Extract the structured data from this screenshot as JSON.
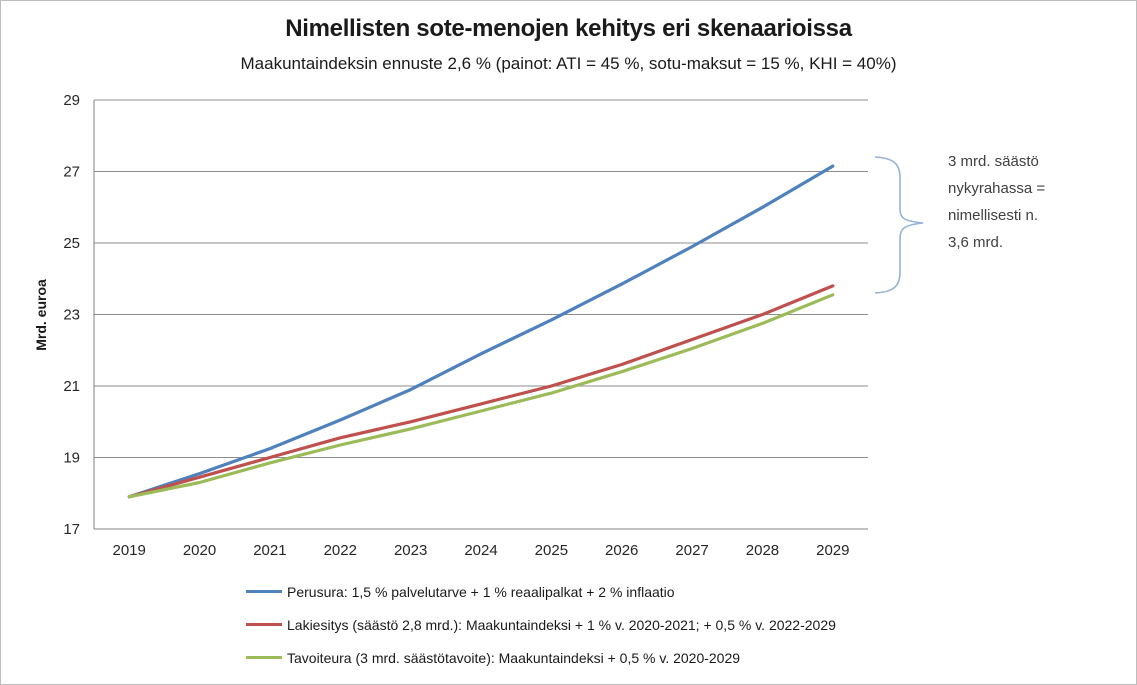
{
  "chart_data": {
    "type": "line",
    "title": "Nimellisten sote-menojen kehitys eri skenaarioissa",
    "subtitle": "Maakuntaindeksin ennuste 2,6 % (painot: ATI = 45 %, sotu-maksut = 15 %, KHI = 40%)",
    "ylabel": "Mrd. euroa",
    "xlabel": "",
    "x": [
      "2019",
      "2020",
      "2021",
      "2022",
      "2023",
      "2024",
      "2025",
      "2026",
      "2027",
      "2028",
      "2029"
    ],
    "yticks": [
      17,
      19,
      21,
      23,
      25,
      27,
      29
    ],
    "ylim": [
      17,
      29
    ],
    "grid": true,
    "legend_position": "bottom-left",
    "series": [
      {
        "name": "Perusura: 1,5 % palvelutarve + 1 % reaalipalkat + 2 % inflaatio",
        "color": "#4F81BD",
        "values": [
          17.9,
          18.55,
          19.25,
          20.05,
          20.9,
          21.9,
          22.85,
          23.85,
          24.9,
          26.0,
          27.15
        ]
      },
      {
        "name": "Lakiesitys (säästö 2,8 mrd.): Maakuntaindeksi + 1 % v. 2020-2021; + 0,5 % v. 2022-2029",
        "color": "#C0504D",
        "values": [
          17.9,
          18.45,
          19.0,
          19.55,
          20.0,
          20.5,
          21.0,
          21.6,
          22.3,
          23.0,
          23.8
        ]
      },
      {
        "name": "Tavoiteura (3 mrd. säästötavoite): Maakuntaindeksi + 0,5 % v. 2020-2029",
        "color": "#9BBB59",
        "values": [
          17.9,
          18.3,
          18.85,
          19.35,
          19.8,
          20.3,
          20.8,
          21.4,
          22.05,
          22.75,
          23.55
        ]
      }
    ],
    "annotation": {
      "lines": [
        "3 mrd. säästö",
        "nykyrahassa  =",
        "nimellisesti n.",
        "3,6 mrd."
      ],
      "brace_color": "#95B3D7"
    }
  }
}
